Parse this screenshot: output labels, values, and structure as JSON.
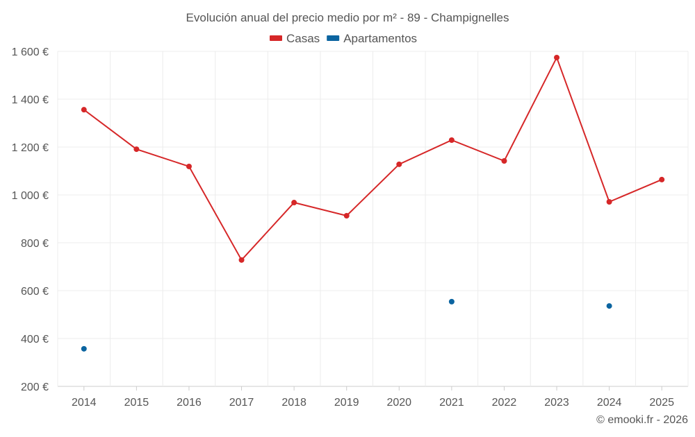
{
  "chart_data": {
    "type": "line",
    "title": "Evolución anual del precio medio por m² - 89 - Champignelles",
    "categories": [
      "2014",
      "2015",
      "2016",
      "2017",
      "2018",
      "2019",
      "2020",
      "2021",
      "2022",
      "2023",
      "2024",
      "2025"
    ],
    "series": [
      {
        "name": "Casas",
        "color": "#d62728",
        "values": [
          1356,
          1191,
          1119,
          728,
          968,
          913,
          1128,
          1229,
          1142,
          1574,
          971,
          1064
        ]
      },
      {
        "name": "Apartamentos",
        "color": "#0b64a0",
        "values": [
          357,
          null,
          null,
          null,
          null,
          null,
          null,
          554,
          null,
          null,
          536,
          null
        ]
      }
    ],
    "yticks": [
      200,
      400,
      600,
      800,
      1000,
      1200,
      1400,
      1600
    ],
    "ytick_labels": [
      "200 €",
      "400 €",
      "600 €",
      "800 €",
      "1 000 €",
      "1 200 €",
      "1 400 €",
      "1 600 €"
    ],
    "ylim": [
      200,
      1600
    ],
    "grid": true,
    "legend": "top-center",
    "credit": "© emooki.fr - 2026"
  }
}
